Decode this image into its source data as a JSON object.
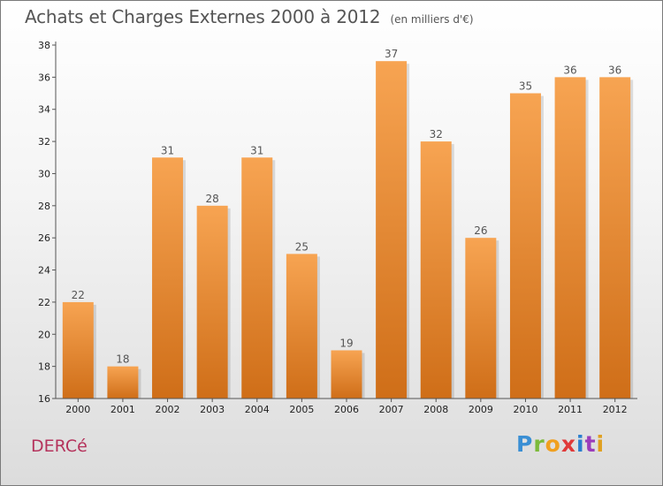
{
  "title": "Achats et Charges Externes 2000 à 2012",
  "unit_note": "(en milliers d'€)",
  "commune": "DERCé",
  "logo_text": "Proxiti",
  "colors": {
    "bar_light": "#f7a452",
    "bar_dark": "#cf6e18",
    "axis": "#555555",
    "commune": "#b5335c"
  },
  "chart_data": {
    "type": "bar",
    "categories": [
      "2000",
      "2001",
      "2002",
      "2003",
      "2004",
      "2005",
      "2006",
      "2007",
      "2008",
      "2009",
      "2010",
      "2011",
      "2012"
    ],
    "values": [
      22,
      18,
      31,
      28,
      31,
      25,
      19,
      37,
      32,
      26,
      35,
      36,
      36
    ],
    "ylim": [
      16,
      38
    ],
    "yticks": [
      16,
      18,
      20,
      22,
      24,
      26,
      28,
      30,
      32,
      34,
      36,
      38
    ],
    "grid": false,
    "legend": "none"
  }
}
